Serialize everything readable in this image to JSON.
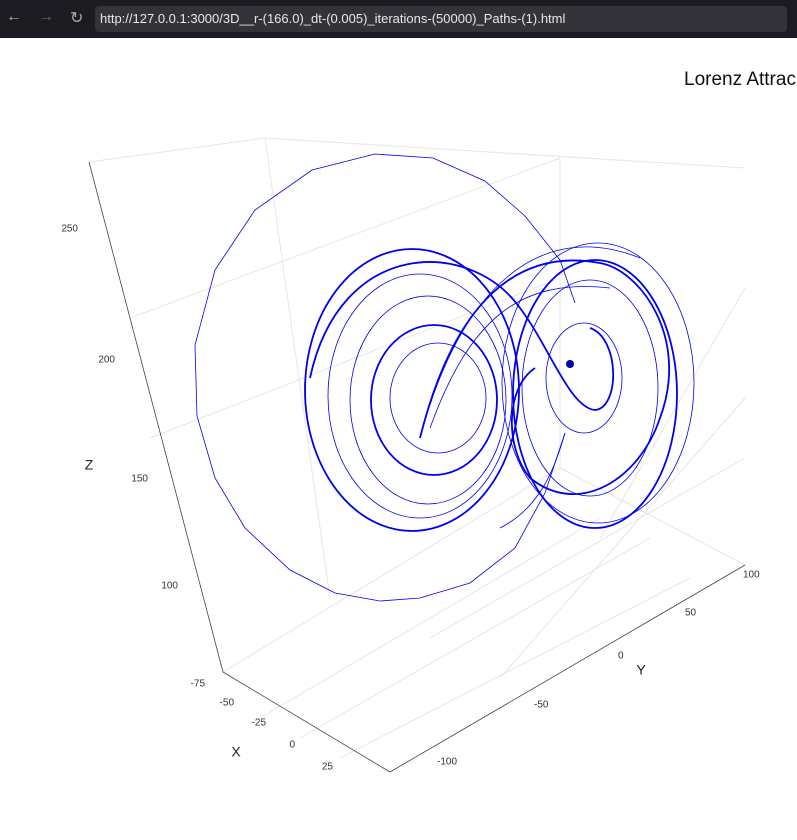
{
  "browser": {
    "url": "http://127.0.0.1:3000/3D__r-(166.0)_dt-(0.005)_iterations-(50000)_Paths-(1).html"
  },
  "plot": {
    "title": "Lorenz Attrac",
    "z_axis": {
      "label": "Z",
      "ticks": [
        250,
        200,
        150,
        100
      ]
    },
    "x_axis": {
      "label": "X",
      "ticks": [
        -75,
        -50,
        -25,
        0,
        25
      ]
    },
    "y_axis": {
      "label": "Y",
      "ticks": [
        100,
        50,
        0,
        -50,
        -100
      ]
    }
  }
}
